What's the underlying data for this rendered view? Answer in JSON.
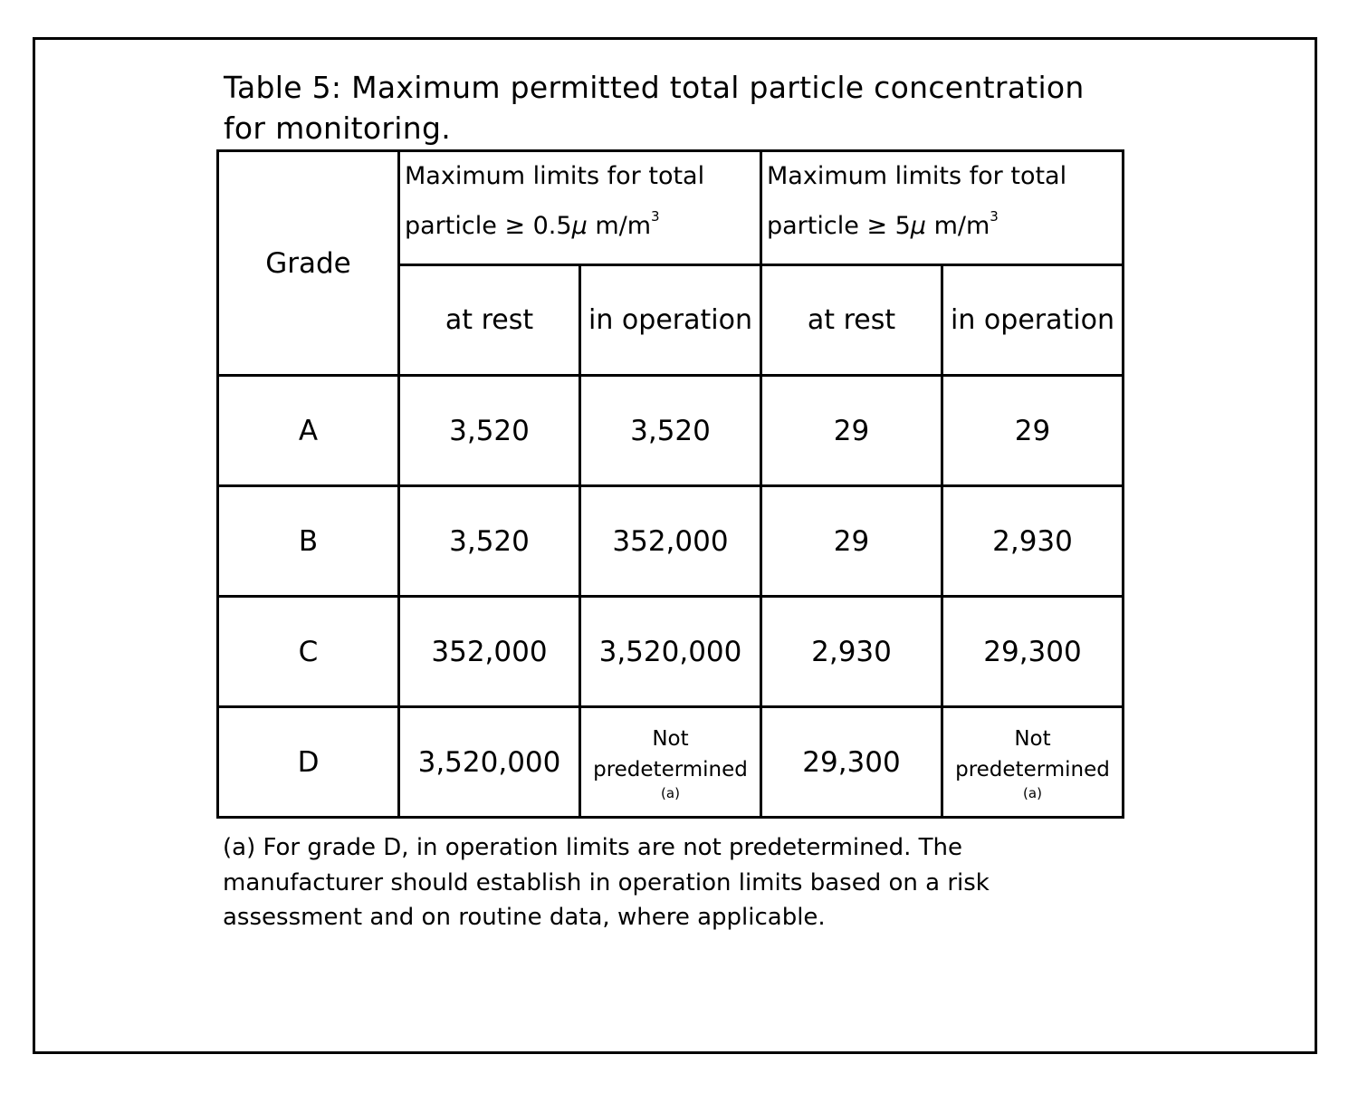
{
  "title": "Table 5: Maximum permitted total particle concentration for monitoring.",
  "table": {
    "grade_header": "Grade",
    "groups": [
      {
        "line1": "Maximum limits for total",
        "line2": "particle ≥ 0.5",
        "mu": "μ",
        "unit": " m/m",
        "exp": "3"
      },
      {
        "line1": "Maximum limits for total",
        "line2": "particle ≥ 5",
        "mu": "μ",
        "unit": " m/m",
        "exp": "3"
      }
    ],
    "subheaders": [
      "at rest",
      "in operation",
      "at rest",
      "in operation"
    ],
    "rows": [
      {
        "grade": "A",
        "values": [
          "3,520",
          "3,520",
          "29",
          "29"
        ]
      },
      {
        "grade": "B",
        "values": [
          "3,520",
          "352,000",
          "29",
          "2,930"
        ]
      },
      {
        "grade": "C",
        "values": [
          "352,000",
          "3,520,000",
          "2,930",
          "29,300"
        ]
      },
      {
        "grade": "D",
        "values": [
          "3,520,000",
          "Not predetermined|(a)",
          "29,300",
          "Not predetermined|(a)"
        ]
      }
    ]
  },
  "footnote": "(a) For grade D, in operation limits are not predetermined. The manufacturer should establish in operation limits based on a risk assessment and on routine data, where applicable."
}
